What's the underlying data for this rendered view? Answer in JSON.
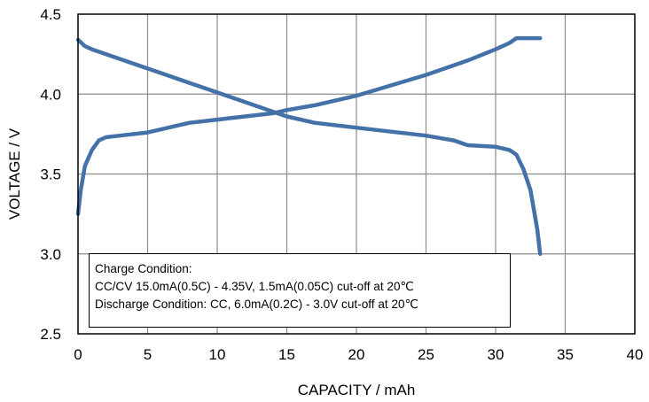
{
  "chart_data": {
    "type": "line",
    "xlabel": "CAPACITY / mAh",
    "ylabel": "VOLTAGE / V",
    "xlim": [
      0,
      40
    ],
    "ylim": [
      2.5,
      4.5
    ],
    "xticks": [
      0,
      5,
      10,
      15,
      20,
      25,
      30,
      35,
      40
    ],
    "yticks": [
      2.5,
      3.0,
      3.5,
      4.0,
      4.5
    ],
    "xtick_labels": [
      "0",
      "5",
      "10",
      "15",
      "20",
      "25",
      "30",
      "35",
      "40"
    ],
    "ytick_labels": [
      "2.5",
      "3.0",
      "3.5",
      "4.0",
      "4.5"
    ],
    "grid": true,
    "line_color": "#4472A8",
    "series": [
      {
        "x": [
          0,
          0.2,
          0.5,
          1.0,
          1.5,
          2.0,
          3.0,
          5.0,
          8.0,
          10.0,
          12.0,
          14.0,
          15.0,
          17.0,
          20.0,
          25.0,
          28.0,
          30.0,
          31.0,
          31.5,
          32.0,
          33.2
        ],
        "y": [
          3.25,
          3.4,
          3.55,
          3.65,
          3.71,
          3.73,
          3.74,
          3.76,
          3.82,
          3.84,
          3.86,
          3.88,
          3.9,
          3.93,
          3.99,
          4.12,
          4.21,
          4.28,
          4.32,
          4.35,
          4.35,
          4.35
        ]
      },
      {
        "x": [
          0,
          0.5,
          1.0,
          2.0,
          4.0,
          6.0,
          8.0,
          10.0,
          12.0,
          14.0,
          15.0,
          17.0,
          20.0,
          22.0,
          25.0,
          27.0,
          28.0,
          30.0,
          31.0,
          31.5,
          32.0,
          32.5,
          33.0,
          33.2
        ],
        "y": [
          4.34,
          4.3,
          4.28,
          4.25,
          4.19,
          4.13,
          4.07,
          4.01,
          3.95,
          3.89,
          3.86,
          3.82,
          3.79,
          3.77,
          3.74,
          3.71,
          3.68,
          3.67,
          3.65,
          3.62,
          3.53,
          3.4,
          3.15,
          3.0
        ]
      }
    ]
  },
  "legend": {
    "line1": "Charge Condition:",
    "line2": "CC/CV 15.0mA(0.5C) - 4.35V, 1.5mA(0.05C) cut-off at  20℃",
    "line3": "Discharge Condition: CC, 6.0mA(0.2C) - 3.0V cut-off at 20℃"
  }
}
